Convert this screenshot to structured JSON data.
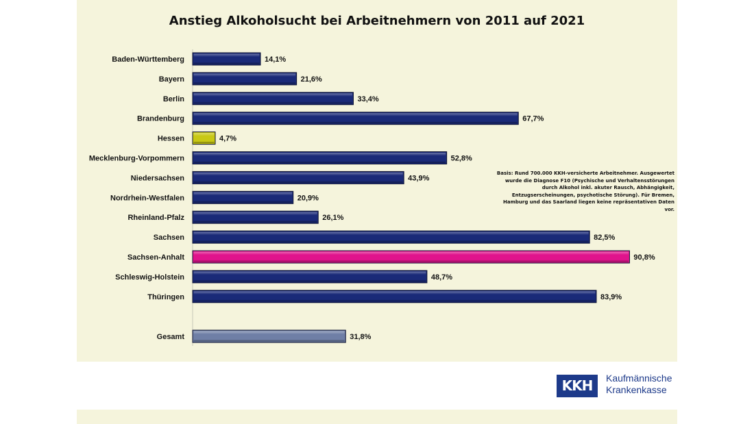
{
  "chart_data": {
    "type": "bar",
    "orientation": "horizontal",
    "title": "Anstieg Alkoholsucht bei Arbeitnehmern von 2011 auf 2021",
    "categories": [
      "Baden-Württemberg",
      "Bayern",
      "Berlin",
      "Brandenburg",
      "Hessen",
      "Mecklenburg-Vorpommern",
      "Niedersachsen",
      "Nordrhein-Westfalen",
      "Rheinland-Pfalz",
      "Sachsen",
      "Sachsen-Anhalt",
      "Schleswig-Holstein",
      "Thüringen",
      "Gesamt"
    ],
    "values": [
      14.1,
      21.6,
      33.4,
      67.7,
      4.7,
      52.8,
      43.9,
      20.9,
      26.1,
      82.5,
      90.8,
      48.7,
      83.9,
      31.8
    ],
    "labels": [
      "14,1%",
      "21,6%",
      "33,4%",
      "67,7%",
      "4,7%",
      "52,8%",
      "43,9%",
      "20,9%",
      "26,1%",
      "82,5%",
      "90,8%",
      "48,7%",
      "83,9%",
      "31,8%"
    ],
    "unit": "%",
    "colors": {
      "default": "#1a2a78",
      "lowest": "#c8c814",
      "highest": "#e0148c",
      "total": "#6f7fa6"
    },
    "highlight": {
      "Hessen": "lowest",
      "Sachsen-Anhalt": "highest",
      "Gesamt": "total"
    },
    "grid": false,
    "legend": "none"
  },
  "note": "Basis: Rund 700.000 KKH-versicherte Arbeitnehmer. Ausgewertet wurde die Diagnose F10 (Psychische und Verhaltensstörungen durch Alkohol inkl. akuter Rausch, Abhängigkeit, Entzugserscheinungen, psychotische Störung). Für Bremen, Hamburg und das Saarland liegen keine repräsentativen Daten vor.",
  "logo": {
    "mark": "KKH",
    "line1": "Kaufmännische",
    "line2": "Krankenkasse"
  }
}
